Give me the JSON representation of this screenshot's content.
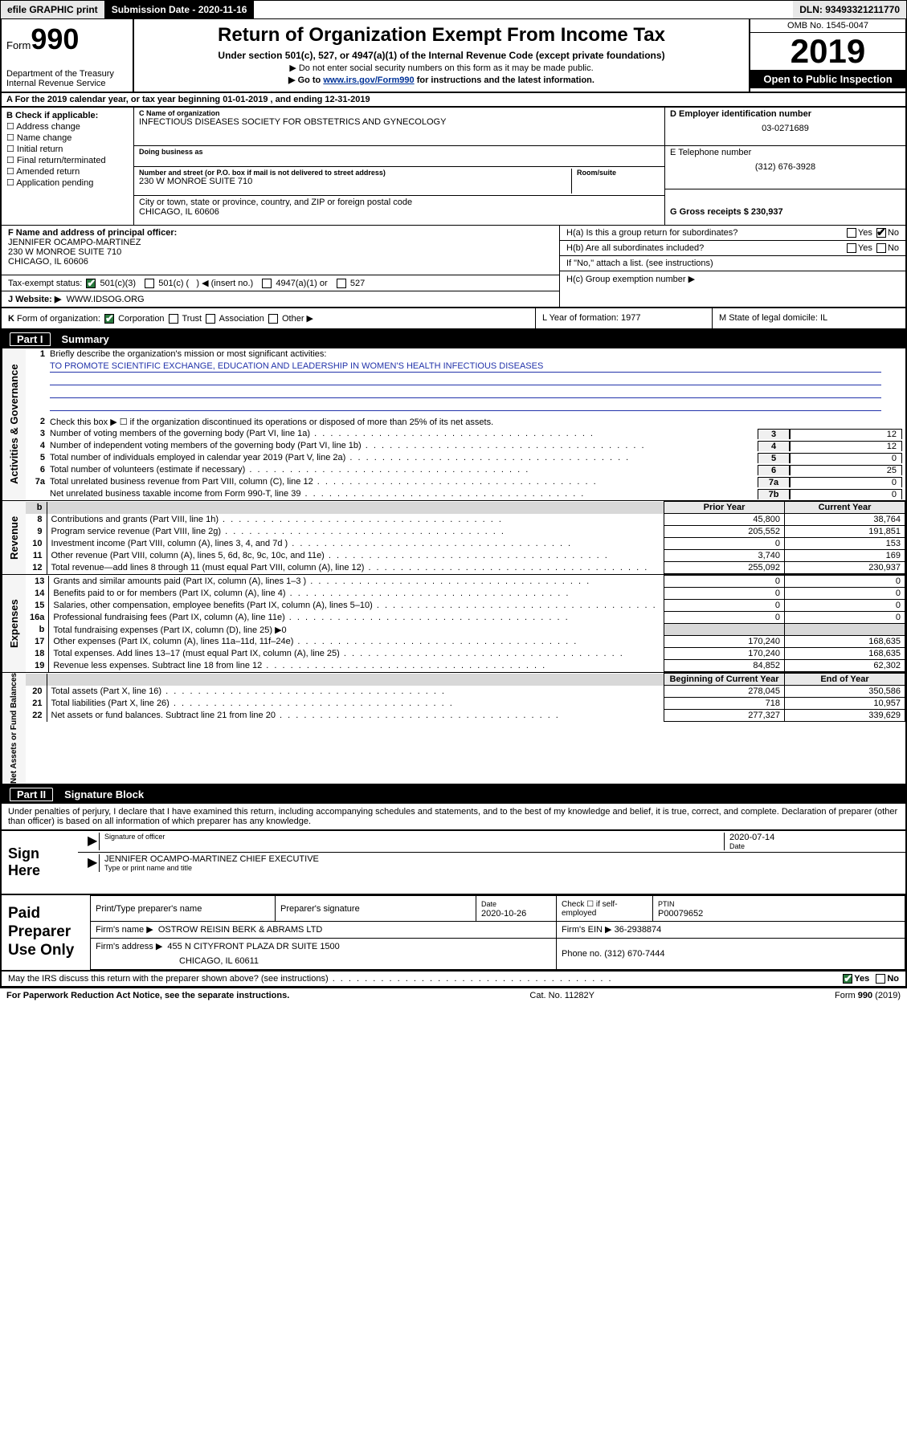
{
  "top": {
    "efile": "efile GRAPHIC print",
    "submission_label": "Submission Date - 2020-11-16",
    "dln": "DLN: 93493321211770"
  },
  "header": {
    "form_label": "Form",
    "form_num": "990",
    "dept": "Department of the Treasury",
    "irs": "Internal Revenue Service",
    "title": "Return of Organization Exempt From Income Tax",
    "subtitle": "Under section 501(c), 527, or 4947(a)(1) of the Internal Revenue Code (except private foundations)",
    "instr1": "▶ Do not enter social security numbers on this form as it may be made public.",
    "instr2_a": "▶ Go to ",
    "instr2_link": "www.irs.gov/Form990",
    "instr2_b": " for instructions and the latest information.",
    "omb": "OMB No. 1545-0047",
    "year": "2019",
    "open": "Open to Public Inspection"
  },
  "sectA": "A For the 2019 calendar year, or tax year beginning 01-01-2019    , and ending 12-31-2019",
  "sectB": {
    "label": "B Check if applicable:",
    "opts": [
      "☐ Address change",
      "☐ Name change",
      "☐ Initial return",
      "☐ Final return/terminated",
      "☐ Amended return",
      "☐ Application pending"
    ]
  },
  "sectC": {
    "name_lbl": "C Name of organization",
    "name": "INFECTIOUS DISEASES SOCIETY FOR OBSTETRICS AND GYNECOLOGY",
    "dba_lbl": "Doing business as",
    "addr_lbl": "Number and street (or P.O. box if mail is not delivered to street address)",
    "addr": "230 W MONROE SUITE 710",
    "room_lbl": "Room/suite",
    "city_lbl": "City or town, state or province, country, and ZIP or foreign postal code",
    "city": "CHICAGO, IL  60606"
  },
  "sectD": {
    "lbl": "D Employer identification number",
    "val": "03-0271689"
  },
  "sectE": {
    "lbl": "E Telephone number",
    "val": "(312) 676-3928"
  },
  "sectG": {
    "lbl": "G Gross receipts $ 230,937"
  },
  "sectF": {
    "lbl": "F  Name and address of principal officer:",
    "name": "JENNIFER OCAMPO-MARTINEZ",
    "addr": "230 W MONROE SUITE 710",
    "city": "CHICAGO, IL  60606"
  },
  "sectH": {
    "a": "H(a)  Is this a group return for subordinates?",
    "b": "H(b)  Are all subordinates included?",
    "b2": "If \"No,\" attach a list. (see instructions)",
    "c": "H(c)  Group exemption number ▶",
    "yes": "Yes",
    "no": "No"
  },
  "sectI": {
    "lbl": "Tax-exempt status:",
    "opts": "501(c)(3)       501(c) (  ) ◀ (insert no.)       4947(a)(1) or       527"
  },
  "sectJ": {
    "lbl": "J   Website: ▶",
    "val": "WWW.IDSOG.ORG"
  },
  "sectK": "K Form of organization:       Corporation      Trust      Association      Other ▶",
  "sectL": "L Year of formation: 1977",
  "sectM": "M State of legal domicile: IL",
  "part1": {
    "header_num": "Part I",
    "header_title": "Summary",
    "side1": "Activities & Governance",
    "l1": "Briefly describe the organization's mission or most significant activities:",
    "l1v": "TO PROMOTE SCIENTIFIC EXCHANGE, EDUCATION AND LEADERSHIP IN WOMEN'S HEALTH INFECTIOUS DISEASES",
    "l2": "Check this box ▶ ☐  if the organization discontinued its operations or disposed of more than 25% of its net assets.",
    "rows_ag": [
      {
        "n": "3",
        "d": "Number of voting members of the governing body (Part VI, line 1a)",
        "b": "3",
        "v": "12"
      },
      {
        "n": "4",
        "d": "Number of independent voting members of the governing body (Part VI, line 1b)",
        "b": "4",
        "v": "12"
      },
      {
        "n": "5",
        "d": "Total number of individuals employed in calendar year 2019 (Part V, line 2a)",
        "b": "5",
        "v": "0"
      },
      {
        "n": "6",
        "d": "Total number of volunteers (estimate if necessary)",
        "b": "6",
        "v": "25"
      },
      {
        "n": "7a",
        "d": "Total unrelated business revenue from Part VIII, column (C), line 12",
        "b": "7a",
        "v": "0"
      },
      {
        "n": "",
        "d": "Net unrelated business taxable income from Form 990-T, line 39",
        "b": "7b",
        "v": "0"
      }
    ],
    "side2": "Revenue",
    "hdr_prior": "Prior Year",
    "hdr_curr": "Current Year",
    "rows_rev": [
      {
        "n": "8",
        "d": "Contributions and grants (Part VIII, line 1h)",
        "p": "45,800",
        "c": "38,764"
      },
      {
        "n": "9",
        "d": "Program service revenue (Part VIII, line 2g)",
        "p": "205,552",
        "c": "191,851"
      },
      {
        "n": "10",
        "d": "Investment income (Part VIII, column (A), lines 3, 4, and 7d )",
        "p": "0",
        "c": "153"
      },
      {
        "n": "11",
        "d": "Other revenue (Part VIII, column (A), lines 5, 6d, 8c, 9c, 10c, and 11e)",
        "p": "3,740",
        "c": "169"
      },
      {
        "n": "12",
        "d": "Total revenue—add lines 8 through 11 (must equal Part VIII, column (A), line 12)",
        "p": "255,092",
        "c": "230,937"
      }
    ],
    "side3": "Expenses",
    "rows_exp": [
      {
        "n": "13",
        "d": "Grants and similar amounts paid (Part IX, column (A), lines 1–3 )",
        "p": "0",
        "c": "0"
      },
      {
        "n": "14",
        "d": "Benefits paid to or for members (Part IX, column (A), line 4)",
        "p": "0",
        "c": "0"
      },
      {
        "n": "15",
        "d": "Salaries, other compensation, employee benefits (Part IX, column (A), lines 5–10)",
        "p": "0",
        "c": "0"
      },
      {
        "n": "16a",
        "d": "Professional fundraising fees (Part IX, column (A), line 11e)",
        "p": "0",
        "c": "0"
      }
    ],
    "l16b": "Total fundraising expenses (Part IX, column (D), line 25) ▶0",
    "rows_exp2": [
      {
        "n": "17",
        "d": "Other expenses (Part IX, column (A), lines 11a–11d, 11f–24e)",
        "p": "170,240",
        "c": "168,635"
      },
      {
        "n": "18",
        "d": "Total expenses. Add lines 13–17 (must equal Part IX, column (A), line 25)",
        "p": "170,240",
        "c": "168,635"
      },
      {
        "n": "19",
        "d": "Revenue less expenses. Subtract line 18 from line 12",
        "p": "84,852",
        "c": "62,302"
      }
    ],
    "side4": "Net Assets or Fund Balances",
    "hdr_beg": "Beginning of Current Year",
    "hdr_end": "End of Year",
    "rows_na": [
      {
        "n": "20",
        "d": "Total assets (Part X, line 16)",
        "p": "278,045",
        "c": "350,586"
      },
      {
        "n": "21",
        "d": "Total liabilities (Part X, line 26)",
        "p": "718",
        "c": "10,957"
      },
      {
        "n": "22",
        "d": "Net assets or fund balances. Subtract line 21 from line 20",
        "p": "277,327",
        "c": "339,629"
      }
    ]
  },
  "part2": {
    "header_num": "Part II",
    "header_title": "Signature Block",
    "declare": "Under penalties of perjury, I declare that I have examined this return, including accompanying schedules and statements, and to the best of my knowledge and belief, it is true, correct, and complete. Declaration of preparer (other than officer) is based on all information of which preparer has any knowledge."
  },
  "sign": {
    "lab": "Sign Here",
    "sig_of": "Signature of officer",
    "date": "2020-07-14",
    "date_lbl": "Date",
    "name": "JENNIFER OCAMPO-MARTINEZ  CHIEF EXECUTIVE",
    "name_lbl": "Type or print name and title"
  },
  "paid": {
    "lab": "Paid Preparer Use Only",
    "h1": "Print/Type preparer's name",
    "h2": "Preparer's signature",
    "h3": "Date",
    "h3v": "2020-10-26",
    "h4": "Check ☐ if self-employed",
    "h5": "PTIN",
    "h5v": "P00079652",
    "firm_lbl": "Firm's name     ▶",
    "firm": "OSTROW REISIN BERK & ABRAMS LTD",
    "ein_lbl": "Firm's EIN ▶",
    "ein": "36-2938874",
    "addr_lbl": "Firm's address ▶",
    "addr": "455 N CITYFRONT PLAZA DR SUITE 1500",
    "city": "CHICAGO, IL  60611",
    "phone_lbl": "Phone no.",
    "phone": "(312) 670-7444"
  },
  "discuss": "May the IRS discuss this return with the preparer shown above? (see instructions)",
  "footer": {
    "l": "For Paperwork Reduction Act Notice, see the separate instructions.",
    "c": "Cat. No. 11282Y",
    "r": "Form 990 (2019)"
  }
}
